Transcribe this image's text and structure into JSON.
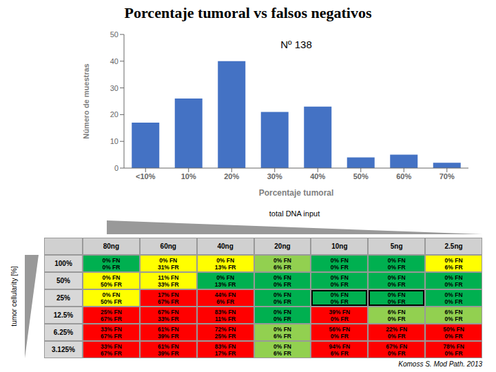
{
  "chart_data": [
    {
      "type": "bar",
      "title": "Porcentaje tumoral vs falsos negativos",
      "categories": [
        "<10%",
        "10%",
        "20%",
        "30%",
        "40%",
        "50%",
        "60%",
        "70%"
      ],
      "values": [
        17,
        26,
        40,
        21,
        23,
        4,
        5,
        2
      ],
      "color": "#4472C4",
      "xlabel": "Porcentaje tumoral",
      "ylabel": "Número de muestras",
      "ylim": [
        0,
        50
      ],
      "yticks": [
        0,
        10,
        20,
        30,
        40,
        50
      ],
      "grid": false,
      "annotations": [
        "Nº 138"
      ]
    },
    {
      "type": "table",
      "xlabel": "total DNA input",
      "ylabel": "tumor cellularity [%]",
      "columns": [
        "80ng",
        "60ng",
        "40ng",
        "20ng",
        "10ng",
        "5ng",
        "2.5ng"
      ],
      "rows": [
        "100%",
        "50%",
        "25%",
        "12.5%",
        "6.25%",
        "3.125%"
      ],
      "cells": [
        [
          {
            "labels": [
              "0% FN",
              "0% FR"
            ],
            "color": "#00b050"
          },
          {
            "labels": [
              "0% FN",
              "31% FR"
            ],
            "color": "#ffff00"
          },
          {
            "labels": [
              "0% FN",
              "13% FR"
            ],
            "color": "#ffff00"
          },
          {
            "labels": [
              "0% FN",
              "6% FR"
            ],
            "color": "#92d050"
          },
          {
            "labels": [
              "0% FN",
              "0% FR"
            ],
            "color": "#00b050"
          },
          {
            "labels": [
              "0% FN",
              "0% FR"
            ],
            "color": "#00b050"
          },
          {
            "labels": [
              "0% FN",
              "6% FR"
            ],
            "color": "#ffff00"
          }
        ],
        [
          {
            "labels": [
              "0% FN",
              "50% FR"
            ],
            "color": "#ffff00"
          },
          {
            "labels": [
              "11% FN",
              "33% FR"
            ],
            "color": "#ffff00"
          },
          {
            "labels": [
              "0% FN",
              "13% FR"
            ],
            "color": "#00b050"
          },
          {
            "labels": [
              "0% FN",
              "0% FR"
            ],
            "color": "#00b050"
          },
          {
            "labels": [
              "0% FN",
              "0% FR"
            ],
            "color": "#00b050"
          },
          {
            "labels": [
              "0% FN",
              "0% FR"
            ],
            "color": "#00b050"
          },
          {
            "labels": [
              "0% FN",
              "0% FR"
            ],
            "color": "#00b050"
          }
        ],
        [
          {
            "labels": [
              "0% FN",
              "50% FR"
            ],
            "color": "#ffff00"
          },
          {
            "labels": [
              "17% FN",
              "67% FR"
            ],
            "color": "#ff0000"
          },
          {
            "labels": [
              "44% FN",
              "6% FR"
            ],
            "color": "#ff0000"
          },
          {
            "labels": [
              "0% FN",
              "0% FR"
            ],
            "color": "#00b050"
          },
          {
            "labels": [
              "0% FN",
              "0% FR"
            ],
            "color": "#00b050"
          },
          {
            "labels": [
              "0% FN",
              "0% FR"
            ],
            "color": "#00b050"
          },
          {
            "labels": [
              "0% FN",
              "0% FR"
            ],
            "color": "#00b050"
          }
        ],
        [
          {
            "labels": [
              "25% FN",
              "67% FR"
            ],
            "color": "#ff0000"
          },
          {
            "labels": [
              "67% FN",
              "33% FR"
            ],
            "color": "#ff0000"
          },
          {
            "labels": [
              "83% FN",
              "11% FR"
            ],
            "color": "#ff0000"
          },
          {
            "labels": [
              "0% FN",
              "0% FR"
            ],
            "color": "#00b050"
          },
          {
            "labels": [
              "39% FN",
              "0% FR"
            ],
            "color": "#ff0000"
          },
          {
            "labels": [
              "6% FN",
              "0% FR"
            ],
            "color": "#92d050"
          },
          {
            "labels": [
              "6% FN",
              "0% FR"
            ],
            "color": "#92d050"
          }
        ],
        [
          {
            "labels": [
              "33% FN",
              "67% FR"
            ],
            "color": "#ff0000"
          },
          {
            "labels": [
              "61% FN",
              "39% FR"
            ],
            "color": "#ff0000"
          },
          {
            "labels": [
              "72% FN",
              "25% FR"
            ],
            "color": "#ff0000"
          },
          {
            "labels": [
              "0% FN",
              "6% FR"
            ],
            "color": "#92d050"
          },
          {
            "labels": [
              "56% FN",
              "0% FR"
            ],
            "color": "#ff0000"
          },
          {
            "labels": [
              "22% FN",
              "0% FR"
            ],
            "color": "#ff0000"
          },
          {
            "labels": [
              "50% FN",
              "0% FR"
            ],
            "color": "#ff0000"
          }
        ],
        [
          {
            "labels": [
              "33% FN",
              "67% FR"
            ],
            "color": "#ff0000"
          },
          {
            "labels": [
              "61% FN",
              "39% FR"
            ],
            "color": "#ff0000"
          },
          {
            "labels": [
              "83% FN",
              "17% FR"
            ],
            "color": "#ff0000"
          },
          {
            "labels": [
              "0% FN",
              "6% FR"
            ],
            "color": "#92d050"
          },
          {
            "labels": [
              "94% FN",
              "6% FR"
            ],
            "color": "#ff0000"
          },
          {
            "labels": [
              "67% FN",
              "0% FR"
            ],
            "color": "#ff0000"
          },
          {
            "labels": [
              "78% FN",
              "0% FR"
            ],
            "color": "#ff0000"
          }
        ]
      ],
      "highlighted_cells": [
        [
          2,
          4
        ],
        [
          2,
          5
        ]
      ],
      "caption": "Komoss S. Mod Path. 2013"
    }
  ]
}
